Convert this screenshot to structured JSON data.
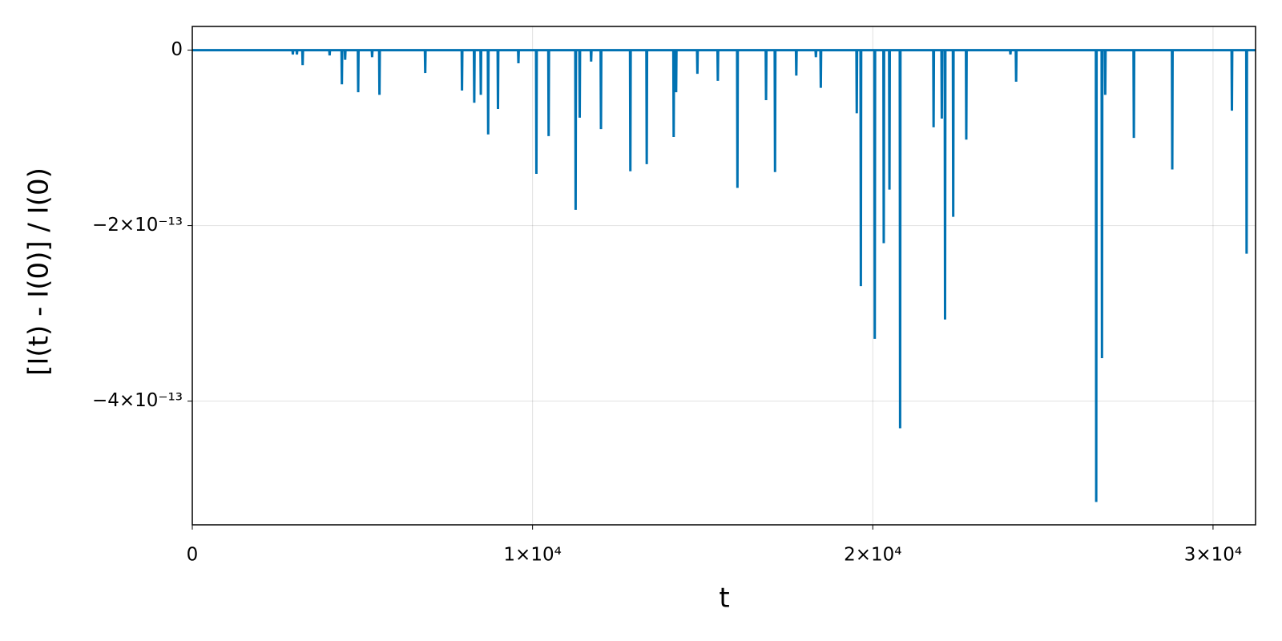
{
  "chart_data": {
    "type": "line",
    "xlabel": "t",
    "ylabel": "[I(t) - I(0)] / I(0)",
    "xlim": [
      0,
      31250
    ],
    "ylim": [
      -5.41e-13,
      2.7e-14
    ],
    "xticks": [
      0,
      {
        "value": 10000,
        "label": "1×10⁴"
      },
      {
        "value": 20000,
        "label": "2×10⁴"
      },
      {
        "value": 30000,
        "label": "3×10⁴"
      }
    ],
    "yticks": [
      0,
      {
        "value": -2e-13,
        "label": "−2×10⁻¹³"
      },
      {
        "value": -4e-13,
        "label": "−4×10⁻¹³"
      }
    ],
    "grid": true,
    "x": [
      0,
      2945,
      2955,
      2965,
      3065,
      3075,
      3085,
      3233,
      3243,
      3253,
      4026,
      4036,
      4046,
      4386,
      4396,
      4406,
      4482,
      4492,
      4502,
      4866,
      4876,
      4886,
      5275,
      5285,
      5295,
      5491,
      5501,
      5511,
      6836,
      6846,
      6856,
      7917,
      7927,
      7937,
      8277,
      8287,
      8297,
      8470,
      8480,
      8490,
      8686,
      8696,
      8706,
      8974,
      8984,
      8994,
      9575,
      9585,
      9595,
      10103,
      10113,
      10123,
      10463,
      10473,
      10483,
      11256,
      11266,
      11276,
      11376,
      11386,
      11396,
      11712,
      11722,
      11732,
      12001,
      12011,
      12021,
      12865,
      12875,
      12885,
      13346,
      13356,
      13366,
      14138,
      14148,
      14158,
      14210,
      14220,
      14230,
      14835,
      14845,
      14855,
      15436,
      15446,
      15456,
      16012,
      16022,
      16032,
      16853,
      16863,
      16873,
      17117,
      17127,
      17137,
      17742,
      17752,
      17762,
      18318,
      18328,
      18338,
      18462,
      18472,
      18482,
      19519,
      19529,
      19539,
      19639,
      19649,
      19659,
      20048,
      20058,
      20068,
      20312,
      20322,
      20332,
      20480,
      20490,
      20500,
      20793,
      20803,
      20813,
      21777,
      21787,
      21797,
      22018,
      22028,
      22038,
      22114,
      22124,
      22134,
      22354,
      22364,
      22374,
      22738,
      22748,
      22758,
      24035,
      24045,
      24055,
      24203,
      24213,
      24223,
      26557,
      26567,
      26577,
      26726,
      26736,
      26746,
      26822,
      26832,
      26842,
      27663,
      27673,
      27683,
      28792,
      28802,
      28812,
      30545,
      30555,
      30565,
      30977,
      30987,
      30997,
      31250
    ],
    "series": [
      {
        "color": "#0072b2",
        "values": [
          0,
          0,
          -5e-15,
          0,
          0,
          -5e-15,
          0,
          0,
          -1.7e-14,
          0,
          0,
          -6e-15,
          0,
          0,
          -3.9e-14,
          0,
          0,
          -1.1e-14,
          0,
          0,
          -4.8e-14,
          0,
          0,
          -8e-15,
          0,
          0,
          -5.1e-14,
          0,
          0,
          -2.6e-14,
          0,
          0,
          -4.6e-14,
          0,
          0,
          -6e-14,
          0,
          0,
          -5.1e-14,
          0,
          0,
          -9.6e-14,
          0,
          0,
          -6.7e-14,
          0,
          0,
          -1.5e-14,
          0,
          0,
          -1.41e-13,
          0,
          0,
          -9.8e-14,
          0,
          0,
          -1.82e-13,
          0,
          0,
          -7.7e-14,
          0,
          0,
          -1.3e-14,
          0,
          0,
          -9e-14,
          0,
          0,
          -1.38e-13,
          0,
          0,
          -1.3e-13,
          0,
          0,
          -9.9e-14,
          0,
          0,
          -4.8e-14,
          0,
          0,
          -2.7e-14,
          0,
          0,
          -3.5e-14,
          0,
          0,
          -1.57e-13,
          0,
          0,
          -5.7e-14,
          0,
          0,
          -1.39e-13,
          0,
          0,
          -2.9e-14,
          0,
          0,
          -8e-15,
          0,
          0,
          -4.3e-14,
          0,
          0,
          -7.2e-14,
          0,
          0,
          -2.69e-13,
          0,
          0,
          -3.29e-13,
          0,
          0,
          -2.2e-13,
          0,
          0,
          -1.59e-13,
          0,
          0,
          -4.31e-13,
          0,
          0,
          -8.8e-14,
          0,
          0,
          -7.8e-14,
          0,
          0,
          -3.07e-13,
          0,
          0,
          -1.9e-13,
          0,
          0,
          -1.02e-13,
          0,
          0,
          -5e-15,
          0,
          0,
          -3.6e-14,
          0,
          0,
          -5.15e-13,
          0,
          0,
          -3.51e-13,
          0,
          0,
          -5.1e-14,
          0,
          0,
          -1e-13,
          0,
          0,
          -1.36e-13,
          0,
          0,
          -6.9e-14,
          0,
          0,
          -2.32e-13,
          0,
          0
        ]
      }
    ]
  }
}
